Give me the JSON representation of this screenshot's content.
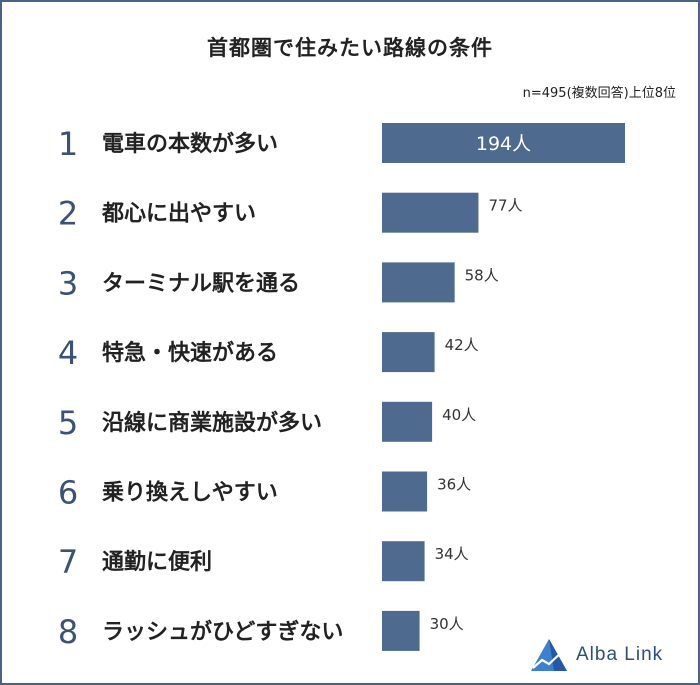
{
  "title": "首都圏で住みたい路線の条件",
  "note": "n=495(複数回答)上位8位",
  "brand": {
    "name": "Alba Link",
    "icon": "alba-link-logo-icon"
  },
  "colors": {
    "bar": "#4f6a8f",
    "rank": "#3b5275",
    "border": "#4a6285",
    "label": "#222222"
  },
  "chart_data": {
    "type": "bar",
    "orientation": "horizontal",
    "title": "首都圏で住みたい路線の条件",
    "ranks": [
      "1",
      "2",
      "3",
      "4",
      "5",
      "6",
      "7",
      "8"
    ],
    "categories": [
      "電車の本数が多い",
      "都心に出やすい",
      "ターミナル駅を通る",
      "特急・快速がある",
      "沿線に商業施設が多い",
      "乗り換えしやすい",
      "通勤に便利",
      "ラッシュがひどすぎない"
    ],
    "values": [
      194,
      77,
      58,
      42,
      40,
      36,
      34,
      30
    ],
    "value_labels": [
      "194人",
      "77人",
      "58人",
      "42人",
      "40人",
      "36人",
      "34人",
      "30人"
    ],
    "unit": "人",
    "xlim": [
      0,
      194
    ],
    "grid": false,
    "legend": "none"
  }
}
